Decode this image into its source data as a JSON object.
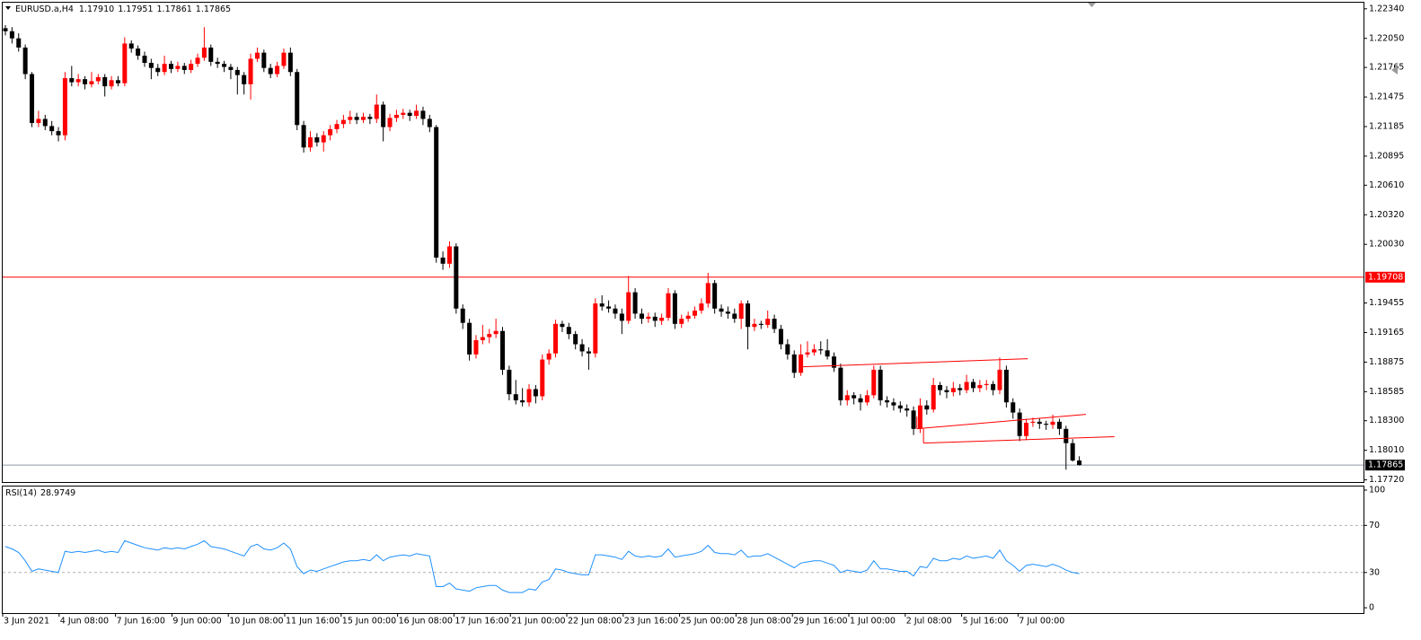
{
  "chart_data": {
    "type": "candlestick",
    "title": "EURUSD.a,H4",
    "current_bar_labels": [
      "1.17910",
      "1.17951",
      "1.17861",
      "1.17865"
    ],
    "bull_color": "#ff0000",
    "bear_color": "#000000",
    "ylim": [
      1.1769,
      1.224
    ],
    "yticks": [
      {
        "value": 1.2234,
        "label": "1.22340"
      },
      {
        "value": 1.2205,
        "label": "1.22050"
      },
      {
        "value": 1.21765,
        "label": "1.21765"
      },
      {
        "value": 1.21475,
        "label": "1.21475"
      },
      {
        "value": 1.21185,
        "label": "1.21185"
      },
      {
        "value": 1.20895,
        "label": "1.20895"
      },
      {
        "value": 1.2061,
        "label": "1.20610"
      },
      {
        "value": 1.2032,
        "label": "1.20320"
      },
      {
        "value": 1.2003,
        "label": "1.20030"
      },
      {
        "value": 1.19455,
        "label": "1.19455"
      },
      {
        "value": 1.19165,
        "label": "1.19165"
      },
      {
        "value": 1.18875,
        "label": "1.18875"
      },
      {
        "value": 1.18585,
        "label": "1.18585"
      },
      {
        "value": 1.183,
        "label": "1.18300"
      },
      {
        "value": 1.1801,
        "label": "1.18010"
      },
      {
        "value": 1.1772,
        "label": "1.17720"
      }
    ],
    "hlines": [
      {
        "value": 1.19708,
        "label": "1.19708",
        "color": "#ff0000"
      }
    ],
    "trendlines": [
      {
        "x": [
          120.3,
          154.2
        ],
        "y": [
          1.18829,
          1.18908
        ],
        "color": "#ff0000"
      },
      {
        "x": [
          137.5,
          163
        ],
        "y": [
          1.18222,
          1.18362
        ],
        "color": "#ff0000"
      },
      {
        "x": [
          138.5,
          167.3
        ],
        "y": [
          1.18081,
          1.18143
        ],
        "color": "#ff0000"
      },
      {
        "x": [
          137.5,
          137.5
        ],
        "y": [
          1.1834,
          1.18222
        ],
        "color": "#ff0000"
      },
      {
        "x": [
          138.5,
          138.5
        ],
        "y": [
          1.18222,
          1.18081
        ],
        "color": "#ff0000"
      }
    ],
    "x_labels": [
      "3 Jun 2021",
      "4 Jun 08:00",
      "7 Jun 16:00",
      "9 Jun 00:00",
      "10 Jun 08:00",
      "11 Jun 16:00",
      "15 Jun 00:00",
      "16 Jun 08:00",
      "17 Jun 16:00",
      "21 Jun 00:00",
      "22 Jun 08:00",
      "23 Jun 16:00",
      "25 Jun 00:00",
      "28 Jun 08:00",
      "29 Jun 16:00",
      "1 Jul 00:00",
      "2 Jul 08:00",
      "5 Jul 16:00",
      "7 Jul 00:00"
    ],
    "candles": [
      [
        1.2215,
        1.2218,
        1.2208,
        1.2212
      ],
      [
        1.2212,
        1.2216,
        1.22,
        1.2205
      ],
      [
        1.2205,
        1.221,
        1.2192,
        1.2196
      ],
      [
        1.2196,
        1.2199,
        1.2165,
        1.217
      ],
      [
        1.217,
        1.2172,
        1.2118,
        1.2122
      ],
      [
        1.2122,
        1.2134,
        1.2118,
        1.2126
      ],
      [
        1.2126,
        1.213,
        1.2115,
        1.2119
      ],
      [
        1.2119,
        1.2124,
        1.211,
        1.2114
      ],
      [
        1.2114,
        1.2118,
        1.2104,
        1.211
      ],
      [
        1.211,
        1.2172,
        1.2105,
        1.2166
      ],
      [
        1.2166,
        1.2178,
        1.2158,
        1.2162
      ],
      [
        1.2162,
        1.217,
        1.2158,
        1.2165
      ],
      [
        1.2165,
        1.2168,
        1.2155,
        1.216
      ],
      [
        1.216,
        1.2172,
        1.2157,
        1.2163
      ],
      [
        1.2163,
        1.217,
        1.216,
        1.2167
      ],
      [
        1.2167,
        1.217,
        1.2148,
        1.2158
      ],
      [
        1.2158,
        1.2168,
        1.2155,
        1.2164
      ],
      [
        1.2164,
        1.2168,
        1.2158,
        1.2161
      ],
      [
        1.2161,
        1.2206,
        1.2158,
        1.22
      ],
      [
        1.22,
        1.2203,
        1.2191,
        1.2195
      ],
      [
        1.2195,
        1.2198,
        1.2184,
        1.2188
      ],
      [
        1.2188,
        1.2192,
        1.2177,
        1.2181
      ],
      [
        1.2181,
        1.2185,
        1.2165,
        1.2176
      ],
      [
        1.2176,
        1.218,
        1.2168,
        1.2172
      ],
      [
        1.2172,
        1.2188,
        1.2169,
        1.218
      ],
      [
        1.218,
        1.2183,
        1.2171,
        1.2175
      ],
      [
        1.2175,
        1.2182,
        1.2172,
        1.2178
      ],
      [
        1.2178,
        1.2181,
        1.217,
        1.2174
      ],
      [
        1.2174,
        1.2184,
        1.2171,
        1.218
      ],
      [
        1.218,
        1.219,
        1.2177,
        1.2186
      ],
      [
        1.2186,
        1.2216,
        1.2183,
        1.2196
      ],
      [
        1.2196,
        1.2199,
        1.2178,
        1.2182
      ],
      [
        1.2182,
        1.2186,
        1.2176,
        1.218
      ],
      [
        1.218,
        1.2183,
        1.2172,
        1.2177
      ],
      [
        1.2177,
        1.218,
        1.2165,
        1.2174
      ],
      [
        1.2174,
        1.2177,
        1.215,
        1.2169
      ],
      [
        1.2169,
        1.2172,
        1.215,
        1.216
      ],
      [
        1.216,
        1.219,
        1.2145,
        1.2185
      ],
      [
        1.2185,
        1.2196,
        1.2182,
        1.2191
      ],
      [
        1.2191,
        1.2194,
        1.2172,
        1.2176
      ],
      [
        1.2176,
        1.218,
        1.2166,
        1.217
      ],
      [
        1.217,
        1.2182,
        1.2167,
        1.2178
      ],
      [
        1.2178,
        1.2195,
        1.2175,
        1.2191
      ],
      [
        1.2191,
        1.2196,
        1.2168,
        1.2172
      ],
      [
        1.2172,
        1.2175,
        1.2115,
        1.212
      ],
      [
        1.212,
        1.2124,
        1.2093,
        1.2098
      ],
      [
        1.2098,
        1.2114,
        1.2094,
        1.2108
      ],
      [
        1.2108,
        1.2112,
        1.2099,
        1.2103
      ],
      [
        1.2103,
        1.2114,
        1.2094,
        1.211
      ],
      [
        1.211,
        1.212,
        1.2105,
        1.2116
      ],
      [
        1.2116,
        1.2125,
        1.2112,
        1.2121
      ],
      [
        1.2121,
        1.213,
        1.2117,
        1.2125
      ],
      [
        1.2125,
        1.2134,
        1.2121,
        1.2128
      ],
      [
        1.2128,
        1.2132,
        1.2121,
        1.2125
      ],
      [
        1.2125,
        1.2132,
        1.2122,
        1.2128
      ],
      [
        1.2128,
        1.2131,
        1.2121,
        1.2126
      ],
      [
        1.2126,
        1.215,
        1.2122,
        1.214
      ],
      [
        1.214,
        1.2143,
        1.2104,
        1.2118
      ],
      [
        1.2118,
        1.2131,
        1.2114,
        1.2127
      ],
      [
        1.2127,
        1.2135,
        1.2123,
        1.213
      ],
      [
        1.213,
        1.2136,
        1.2126,
        1.2132
      ],
      [
        1.2132,
        1.2135,
        1.2124,
        1.2129
      ],
      [
        1.2129,
        1.214,
        1.2126,
        1.2134
      ],
      [
        1.2134,
        1.2138,
        1.212,
        1.2126
      ],
      [
        1.2126,
        1.213,
        1.2113,
        1.2118
      ],
      [
        1.2118,
        1.212,
        1.1985,
        1.199
      ],
      [
        1.199,
        1.1996,
        1.1978,
        1.1984
      ],
      [
        1.1984,
        1.2006,
        1.198,
        1.2001
      ],
      [
        1.2001,
        1.2004,
        1.1935,
        1.194
      ],
      [
        1.194,
        1.1944,
        1.192,
        1.1926
      ],
      [
        1.1926,
        1.193,
        1.1889,
        1.1895
      ],
      [
        1.1895,
        1.1914,
        1.1891,
        1.1909
      ],
      [
        1.1909,
        1.1924,
        1.1905,
        1.1912
      ],
      [
        1.1912,
        1.192,
        1.1906,
        1.1915
      ],
      [
        1.1915,
        1.193,
        1.1911,
        1.1918
      ],
      [
        1.1918,
        1.1922,
        1.1875,
        1.188
      ],
      [
        1.188,
        1.1884,
        1.185,
        1.1856
      ],
      [
        1.1856,
        1.187,
        1.1846,
        1.185
      ],
      [
        1.185,
        1.1862,
        1.1844,
        1.1848
      ],
      [
        1.1848,
        1.1866,
        1.1844,
        1.1861
      ],
      [
        1.1861,
        1.1865,
        1.1847,
        1.1854
      ],
      [
        1.1854,
        1.1895,
        1.185,
        1.189
      ],
      [
        1.189,
        1.19,
        1.1885,
        1.1896
      ],
      [
        1.1896,
        1.1929,
        1.1892,
        1.1925
      ],
      [
        1.1925,
        1.1928,
        1.1917,
        1.1922
      ],
      [
        1.1922,
        1.1926,
        1.191,
        1.1915
      ],
      [
        1.1915,
        1.1918,
        1.19,
        1.1905
      ],
      [
        1.1905,
        1.191,
        1.1893,
        1.1898
      ],
      [
        1.1898,
        1.1902,
        1.188,
        1.1896
      ],
      [
        1.1896,
        1.195,
        1.1892,
        1.1945
      ],
      [
        1.1945,
        1.1953,
        1.1938,
        1.1942
      ],
      [
        1.1942,
        1.1948,
        1.1936,
        1.194
      ],
      [
        1.194,
        1.1944,
        1.193,
        1.1935
      ],
      [
        1.1935,
        1.194,
        1.1915,
        1.1928
      ],
      [
        1.1928,
        1.1972,
        1.1925,
        1.1956
      ],
      [
        1.1956,
        1.196,
        1.193,
        1.1935
      ],
      [
        1.1935,
        1.194,
        1.1925,
        1.193
      ],
      [
        1.193,
        1.1936,
        1.1926,
        1.1932
      ],
      [
        1.1932,
        1.1936,
        1.1922,
        1.1928
      ],
      [
        1.1928,
        1.1935,
        1.1924,
        1.1931
      ],
      [
        1.1931,
        1.196,
        1.1928,
        1.1955
      ],
      [
        1.1955,
        1.1958,
        1.192,
        1.1925
      ],
      [
        1.1925,
        1.1934,
        1.1921,
        1.193
      ],
      [
        1.193,
        1.1937,
        1.1927,
        1.1933
      ],
      [
        1.1933,
        1.1942,
        1.193,
        1.1938
      ],
      [
        1.1938,
        1.195,
        1.1935,
        1.1945
      ],
      [
        1.1945,
        1.1975,
        1.1941,
        1.1965
      ],
      [
        1.1965,
        1.1968,
        1.1935,
        1.194
      ],
      [
        1.194,
        1.1944,
        1.1932,
        1.1937
      ],
      [
        1.1937,
        1.1942,
        1.193,
        1.1935
      ],
      [
        1.1935,
        1.194,
        1.1926,
        1.193
      ],
      [
        1.193,
        1.1948,
        1.192,
        1.1945
      ],
      [
        1.1945,
        1.1948,
        1.19,
        1.1922
      ],
      [
        1.1922,
        1.193,
        1.1918,
        1.1925
      ],
      [
        1.1925,
        1.1928,
        1.192,
        1.1924
      ],
      [
        1.1924,
        1.1938,
        1.1921,
        1.193
      ],
      [
        1.193,
        1.1934,
        1.1916,
        1.192
      ],
      [
        1.192,
        1.1924,
        1.19,
        1.1905
      ],
      [
        1.1905,
        1.191,
        1.189,
        1.1895
      ],
      [
        1.1895,
        1.1899,
        1.1872,
        1.1877
      ],
      [
        1.1877,
        1.1905,
        1.1874,
        1.1895
      ],
      [
        1.1895,
        1.1908,
        1.1892,
        1.1897
      ],
      [
        1.1897,
        1.1905,
        1.1894,
        1.19
      ],
      [
        1.19,
        1.1908,
        1.1895,
        1.1899
      ],
      [
        1.1899,
        1.191,
        1.189,
        1.1893
      ],
      [
        1.1893,
        1.1897,
        1.1878,
        1.1882
      ],
      [
        1.1882,
        1.1886,
        1.1845,
        1.185
      ],
      [
        1.185,
        1.186,
        1.1845,
        1.1855
      ],
      [
        1.1855,
        1.1858,
        1.1846,
        1.1852
      ],
      [
        1.1852,
        1.1856,
        1.184,
        1.1848
      ],
      [
        1.1848,
        1.186,
        1.1845,
        1.1855
      ],
      [
        1.1855,
        1.1884,
        1.1852,
        1.188
      ],
      [
        1.188,
        1.1884,
        1.1845,
        1.185
      ],
      [
        1.185,
        1.1854,
        1.1843,
        1.1848
      ],
      [
        1.1848,
        1.1852,
        1.184,
        1.1845
      ],
      [
        1.1845,
        1.1849,
        1.1838,
        1.1842
      ],
      [
        1.1842,
        1.1846,
        1.1834,
        1.184
      ],
      [
        1.184,
        1.1844,
        1.1816,
        1.1822
      ],
      [
        1.1822,
        1.1852,
        1.1818,
        1.1845
      ],
      [
        1.1845,
        1.185,
        1.1836,
        1.1841
      ],
      [
        1.1841,
        1.1872,
        1.1838,
        1.1865
      ],
      [
        1.1865,
        1.1868,
        1.1855,
        1.186
      ],
      [
        1.186,
        1.1864,
        1.1852,
        1.1858
      ],
      [
        1.1858,
        1.1868,
        1.1854,
        1.1862
      ],
      [
        1.1862,
        1.1866,
        1.1855,
        1.186
      ],
      [
        1.186,
        1.1875,
        1.1857,
        1.1868
      ],
      [
        1.1868,
        1.1871,
        1.1858,
        1.1862
      ],
      [
        1.1862,
        1.187,
        1.1858,
        1.1865
      ],
      [
        1.1865,
        1.187,
        1.186,
        1.1866
      ],
      [
        1.1866,
        1.1869,
        1.1855,
        1.186
      ],
      [
        1.186,
        1.1892,
        1.1856,
        1.188
      ],
      [
        1.188,
        1.1884,
        1.1843,
        1.1848
      ],
      [
        1.1848,
        1.1852,
        1.1832,
        1.1838
      ],
      [
        1.1838,
        1.1842,
        1.181,
        1.1815
      ],
      [
        1.1815,
        1.1832,
        1.1811,
        1.1828
      ],
      [
        1.1828,
        1.1833,
        1.1824,
        1.1829
      ],
      [
        1.1829,
        1.1832,
        1.1822,
        1.1827
      ],
      [
        1.1827,
        1.183,
        1.1821,
        1.1826
      ],
      [
        1.1826,
        1.1836,
        1.1822,
        1.1829
      ],
      [
        1.1829,
        1.1832,
        1.1816,
        1.1822
      ],
      [
        1.1822,
        1.1825,
        1.1782,
        1.1808
      ],
      [
        1.1808,
        1.1812,
        1.179,
        1.1791
      ],
      [
        1.1791,
        1.17951,
        1.17861,
        1.17865
      ]
    ],
    "rsi": {
      "type": "line",
      "name": "RSI(14)",
      "color": "#1e90ff",
      "ylim": [
        -4.5,
        103.8
      ],
      "yticks": [
        100,
        70,
        30,
        0
      ],
      "levels": [
        70,
        30
      ],
      "values": [
        52,
        50,
        47,
        40,
        31,
        33,
        32,
        31,
        30,
        48,
        47,
        48,
        47,
        48,
        49,
        47,
        48,
        47,
        57,
        55,
        53,
        51,
        50,
        49,
        51,
        50,
        51,
        50,
        52,
        54,
        57,
        52,
        51,
        50,
        48,
        46,
        44,
        52,
        54,
        50,
        49,
        51,
        55,
        50,
        35,
        29,
        32,
        31,
        33,
        35,
        37,
        39,
        40,
        40,
        41,
        40,
        45,
        40,
        43,
        44,
        45,
        44,
        46,
        45,
        44,
        18,
        18,
        21,
        16,
        15,
        14,
        17,
        18,
        19,
        19,
        15,
        13,
        13,
        13,
        16,
        15,
        22,
        24,
        33,
        32,
        30,
        29,
        28,
        28,
        45,
        45,
        44,
        43,
        41,
        48,
        44,
        43,
        44,
        43,
        44,
        50,
        43,
        44,
        45,
        46,
        48,
        53,
        47,
        46,
        46,
        45,
        49,
        43,
        44,
        44,
        46,
        43,
        40,
        37,
        34,
        38,
        39,
        40,
        40,
        38,
        36,
        30,
        32,
        31,
        30,
        32,
        40,
        33,
        33,
        32,
        31,
        31,
        27,
        35,
        34,
        42,
        40,
        40,
        42,
        41,
        44,
        42,
        43,
        44,
        42,
        49,
        40,
        36,
        31,
        36,
        37,
        36,
        35,
        37,
        35,
        32,
        30,
        28.9749
      ]
    }
  }
}
